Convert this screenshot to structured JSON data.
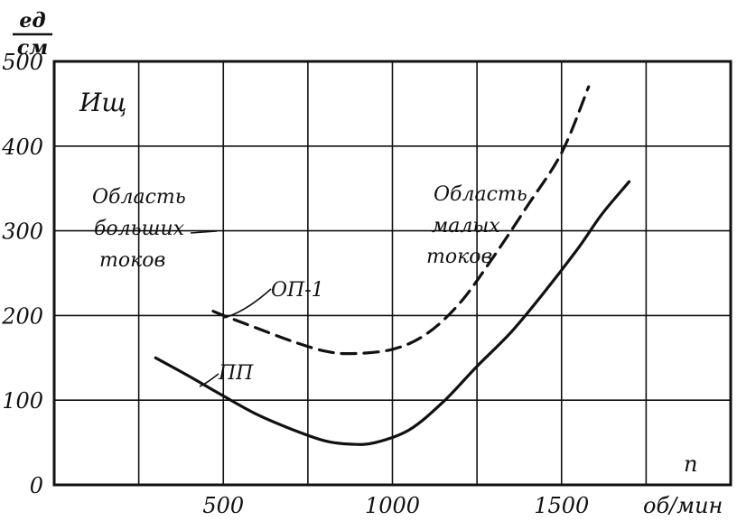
{
  "chart_data": {
    "type": "line",
    "ylabel_unit_top": "ед",
    "ylabel_unit_bottom": "см",
    "ylabel": "Ищ",
    "xlabel_symbol": "n",
    "xlabel_unit": "об/мин",
    "xlim": [
      0,
      2000
    ],
    "ylim": [
      0,
      500
    ],
    "x_ticks": [
      "500",
      "1000",
      "1500"
    ],
    "x_tick_values": [
      500,
      1000,
      1500
    ],
    "y_ticks": [
      "0",
      "100",
      "200",
      "300",
      "400",
      "500"
    ],
    "y_tick_values": [
      0,
      100,
      200,
      300,
      400,
      500
    ],
    "grid": true,
    "series": [
      {
        "name": "ОП-1",
        "style": "dashed",
        "points": [
          [
            470,
            205
          ],
          [
            520,
            197
          ],
          [
            600,
            185
          ],
          [
            700,
            170
          ],
          [
            800,
            158
          ],
          [
            880,
            155
          ],
          [
            1000,
            160
          ],
          [
            1100,
            178
          ],
          [
            1200,
            215
          ],
          [
            1300,
            270
          ],
          [
            1400,
            330
          ],
          [
            1500,
            392
          ],
          [
            1580,
            470
          ]
        ]
      },
      {
        "name": "ПП",
        "style": "solid",
        "points": [
          [
            300,
            150
          ],
          [
            400,
            128
          ],
          [
            500,
            105
          ],
          [
            600,
            83
          ],
          [
            700,
            66
          ],
          [
            800,
            52
          ],
          [
            880,
            48
          ],
          [
            950,
            50
          ],
          [
            1050,
            65
          ],
          [
            1150,
            98
          ],
          [
            1250,
            140
          ],
          [
            1350,
            180
          ],
          [
            1450,
            228
          ],
          [
            1550,
            280
          ],
          [
            1620,
            320
          ],
          [
            1700,
            358
          ]
        ]
      }
    ],
    "annotations": {
      "large_currents": [
        "Область",
        "больших",
        "токов"
      ],
      "small_currents": [
        "Область",
        "малых",
        "токов"
      ]
    }
  }
}
